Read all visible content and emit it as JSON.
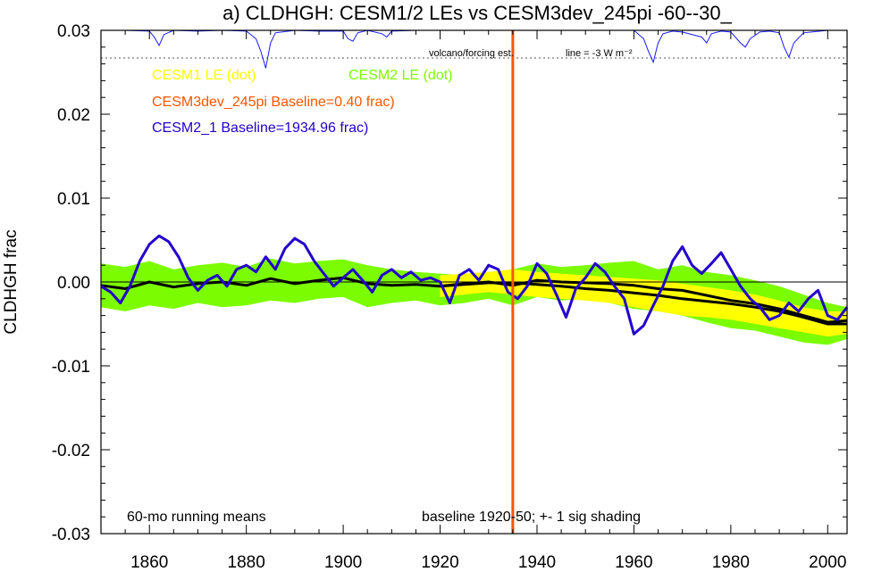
{
  "chart_data": {
    "type": "line",
    "title": "a) CLDHGH: CESM1/2 LEs vs CESM3dev_245pi -60--30_",
    "ylabel": "CLDHGH frac",
    "xlabel": "",
    "xlim": [
      1850,
      2004
    ],
    "ylim": [
      -0.03,
      0.03
    ],
    "x_ticks": [
      1860,
      1880,
      1900,
      1920,
      1940,
      1960,
      1980,
      2000
    ],
    "y_ticks": [
      -0.03,
      -0.02,
      -0.01,
      0.0,
      0.01,
      0.02,
      0.03
    ],
    "y_tick_labels": [
      "-0.03",
      "-0.02",
      "-0.01",
      "0.00",
      "0.01",
      "0.02",
      "0.03"
    ],
    "zero_line": true,
    "grid": false,
    "legend": {
      "cesm1": "CESM1 LE (dot)",
      "cesm2": "CESM2 LE (dot)",
      "cesm3": "CESM3dev_245pi Baseline=0.40 frac)",
      "cesm21": "CESM2_1 Baseline=1934.96 frac)"
    },
    "annotations": {
      "running_means": "60-mo running means",
      "baseline_note": "baseline 1920-50; +- 1 sig shading",
      "volcano_label": "volcano/forcing est.",
      "volcano_line_label": "line = -3 W m⁻²"
    },
    "colors": {
      "cesm1_fill": "#ffff00",
      "cesm2_fill": "#7cfc00",
      "cesm3_line": "#ff5500",
      "cesm21_line": "#2200cc",
      "mean_line": "#000000",
      "volcano_line": "#1a1aff"
    },
    "vertical_marker_x": 1935,
    "volcano_reference_y": 0.0267,
    "cesm2_band": {
      "x": [
        1850,
        1855,
        1860,
        1865,
        1870,
        1875,
        1880,
        1885,
        1890,
        1895,
        1900,
        1905,
        1910,
        1915,
        1920,
        1925,
        1930,
        1935,
        1940,
        1945,
        1950,
        1955,
        1960,
        1965,
        1970,
        1975,
        1980,
        1985,
        1990,
        1995,
        2000,
        2004
      ],
      "upper": [
        0.0022,
        0.0018,
        0.0025,
        0.0015,
        0.002,
        0.0023,
        0.0018,
        0.0028,
        0.0022,
        0.0025,
        0.0027,
        0.002,
        0.0015,
        0.0012,
        0.001,
        0.0008,
        0.0012,
        0.0015,
        0.0022,
        0.0018,
        0.002,
        0.0023,
        0.0025,
        0.0015,
        0.002,
        0.0012,
        0.0008,
        0.0002,
        -0.0005,
        -0.0015,
        -0.0025,
        -0.003
      ],
      "lower": [
        -0.003,
        -0.0035,
        -0.0028,
        -0.0032,
        -0.0025,
        -0.003,
        -0.0028,
        -0.0022,
        -0.0025,
        -0.002,
        -0.0018,
        -0.003,
        -0.0025,
        -0.0022,
        -0.0028,
        -0.0025,
        -0.002,
        -0.0028,
        -0.0018,
        -0.0022,
        -0.002,
        -0.0025,
        -0.0032,
        -0.0035,
        -0.004,
        -0.0048,
        -0.0055,
        -0.0058,
        -0.0065,
        -0.0072,
        -0.0075,
        -0.0068
      ]
    },
    "cesm1_band": {
      "x": [
        1920,
        1925,
        1930,
        1935,
        1940,
        1945,
        1950,
        1955,
        1960,
        1965,
        1970,
        1975,
        1980,
        1985,
        1990,
        1995,
        2000,
        2004
      ],
      "upper": [
        0.0008,
        0.001,
        0.0012,
        0.0015,
        0.0012,
        0.001,
        0.0008,
        0.0006,
        0.0004,
        0.0002,
        -0.0002,
        -0.0006,
        -0.001,
        -0.0015,
        -0.0022,
        -0.003,
        -0.0035,
        -0.0035
      ],
      "lower": [
        -0.0018,
        -0.0015,
        -0.0012,
        -0.0015,
        -0.0018,
        -0.002,
        -0.0022,
        -0.0025,
        -0.003,
        -0.0035,
        -0.004,
        -0.0042,
        -0.0045,
        -0.005,
        -0.0055,
        -0.006,
        -0.0065,
        -0.0062
      ]
    },
    "series": [
      {
        "id": "cesm2_mean",
        "x": [
          1850,
          1855,
          1860,
          1865,
          1870,
          1875,
          1880,
          1885,
          1890,
          1895,
          1900,
          1905,
          1910,
          1915,
          1920,
          1925,
          1930,
          1935,
          1940,
          1945,
          1950,
          1955,
          1960,
          1965,
          1970,
          1975,
          1980,
          1985,
          1990,
          1995,
          2000,
          2004
        ],
        "y": [
          -0.0004,
          -0.0008,
          0.0,
          -0.0006,
          -0.0002,
          0.0,
          -0.0004,
          0.0004,
          -0.0002,
          0.0002,
          0.0005,
          -0.0002,
          -0.0004,
          -0.0003,
          -0.0005,
          -0.0002,
          0.0,
          -0.0004,
          0.0002,
          0.0,
          -0.0001,
          -0.0002,
          -0.0004,
          -0.0008,
          -0.001,
          -0.0016,
          -0.0022,
          -0.0026,
          -0.0032,
          -0.004,
          -0.0048,
          -0.0046
        ]
      },
      {
        "id": "cesm1_mean",
        "x": [
          1920,
          1925,
          1930,
          1935,
          1940,
          1945,
          1950,
          1955,
          1960,
          1965,
          1970,
          1975,
          1980,
          1985,
          1990,
          1995,
          2000,
          2004
        ],
        "y": [
          -0.0005,
          -0.0003,
          -0.0001,
          -0.0001,
          -0.0003,
          -0.0005,
          -0.0008,
          -0.001,
          -0.0013,
          -0.0016,
          -0.002,
          -0.0023,
          -0.0026,
          -0.003,
          -0.0035,
          -0.0042,
          -0.005,
          -0.005
        ]
      },
      {
        "id": "cesm21",
        "x": [
          1850,
          1852,
          1854,
          1856,
          1858,
          1860,
          1862,
          1864,
          1866,
          1868,
          1870,
          1872,
          1874,
          1876,
          1878,
          1880,
          1882,
          1884,
          1886,
          1888,
          1890,
          1892,
          1894,
          1896,
          1898,
          1900,
          1902,
          1904,
          1906,
          1908,
          1910,
          1912,
          1914,
          1916,
          1918,
          1920,
          1922,
          1924,
          1926,
          1928,
          1930,
          1932,
          1934,
          1936,
          1938,
          1940,
          1942,
          1944,
          1946,
          1948,
          1950,
          1952,
          1954,
          1956,
          1958,
          1960,
          1962,
          1964,
          1966,
          1968,
          1970,
          1972,
          1974,
          1976,
          1978,
          1980,
          1982,
          1984,
          1986,
          1988,
          1990,
          1992,
          1994,
          1996,
          1998,
          2000,
          2002,
          2004
        ],
        "y": [
          -0.0005,
          -0.0012,
          -0.0025,
          -0.0005,
          0.0025,
          0.0045,
          0.0055,
          0.0048,
          0.003,
          0.0005,
          -0.001,
          0.0002,
          0.0008,
          -0.0005,
          0.0015,
          0.002,
          0.0012,
          0.003,
          0.0015,
          0.004,
          0.0052,
          0.0045,
          0.0025,
          0.001,
          -0.0005,
          0.0005,
          0.0015,
          0.0002,
          -0.0012,
          0.0008,
          0.0015,
          0.0005,
          0.0012,
          0.0002,
          0.0005,
          0.0,
          -0.0025,
          0.0008,
          0.0015,
          0.0002,
          0.002,
          0.0015,
          -0.0012,
          -0.002,
          -0.0005,
          0.0022,
          0.001,
          -0.0015,
          -0.0042,
          -0.0008,
          0.0005,
          0.0022,
          0.0012,
          -0.0005,
          -0.002,
          -0.0062,
          -0.0052,
          -0.0028,
          -0.0005,
          0.0025,
          0.0042,
          0.002,
          0.001,
          0.0022,
          0.0035,
          0.0015,
          -0.0005,
          -0.002,
          -0.003,
          -0.0045,
          -0.004,
          -0.0025,
          -0.0035,
          -0.002,
          -0.001,
          -0.004,
          -0.0045,
          -0.003
        ]
      }
    ],
    "volcano_series": {
      "x": [
        1850,
        1855,
        1860,
        1861,
        1862,
        1863,
        1865,
        1870,
        1875,
        1880,
        1882,
        1883,
        1884,
        1885,
        1886,
        1890,
        1895,
        1900,
        1901,
        1902,
        1903,
        1905,
        1908,
        1909,
        1910,
        1915,
        1920,
        1925,
        1930,
        1935,
        1940,
        1950,
        1955,
        1960,
        1962,
        1963,
        1964,
        1965,
        1966,
        1968,
        1970,
        1974,
        1975,
        1976,
        1978,
        1980,
        1982,
        1983,
        1984,
        1986,
        1988,
        1990,
        1991,
        1992,
        1993,
        1995,
        2000,
        2004
      ],
      "y": [
        0.03,
        0.03,
        0.0299,
        0.0292,
        0.0282,
        0.0295,
        0.03,
        0.0299,
        0.03,
        0.0299,
        0.029,
        0.0275,
        0.0255,
        0.0285,
        0.0297,
        0.03,
        0.0299,
        0.0299,
        0.029,
        0.0287,
        0.0297,
        0.03,
        0.0296,
        0.0292,
        0.0299,
        0.03,
        0.03,
        0.03,
        0.03,
        0.03,
        0.03,
        0.03,
        0.03,
        0.03,
        0.029,
        0.0275,
        0.0262,
        0.0285,
        0.0296,
        0.0299,
        0.0298,
        0.0292,
        0.0285,
        0.0296,
        0.0299,
        0.0298,
        0.0285,
        0.028,
        0.029,
        0.0298,
        0.0299,
        0.0297,
        0.028,
        0.0268,
        0.0285,
        0.0297,
        0.03,
        0.03
      ]
    }
  }
}
